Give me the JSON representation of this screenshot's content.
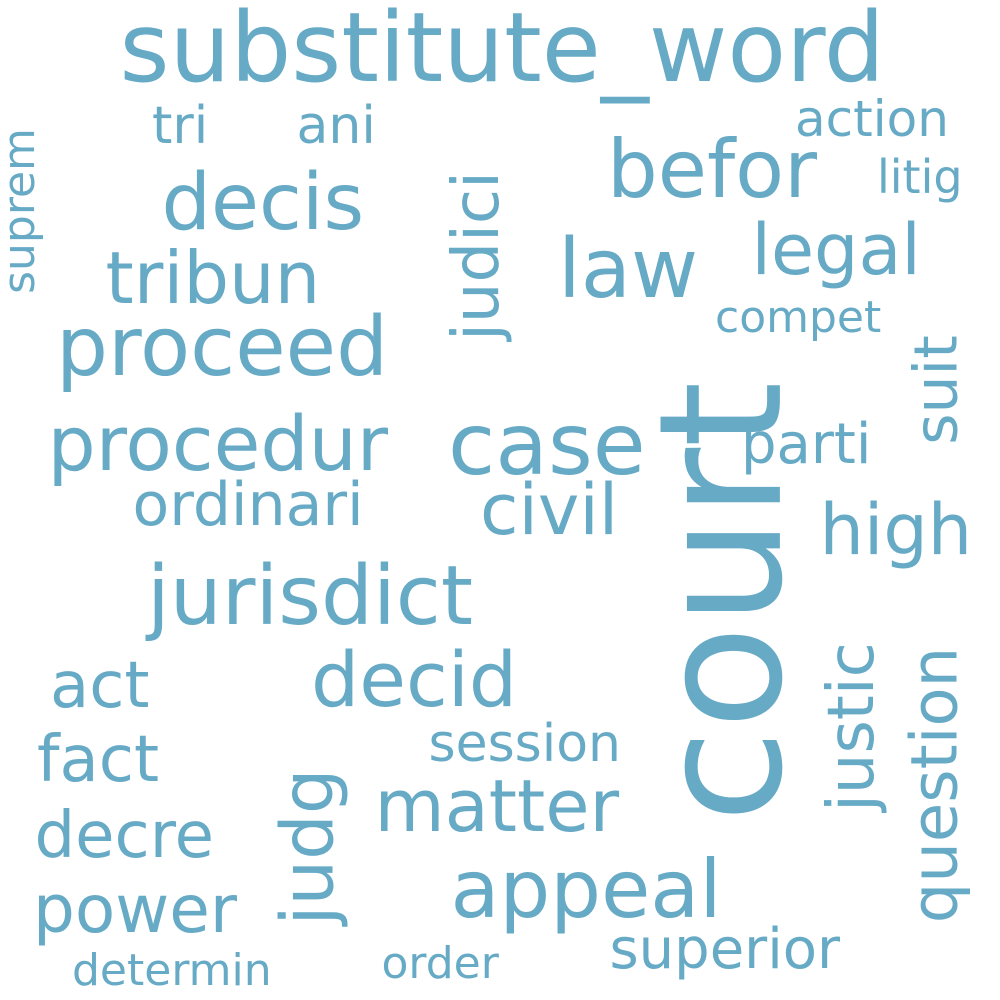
{
  "color": "#67aac6",
  "words": [
    {
      "text": "substitute_word"
    },
    {
      "text": "court"
    },
    {
      "text": "case"
    },
    {
      "text": "law"
    },
    {
      "text": "befor"
    },
    {
      "text": "decis"
    },
    {
      "text": "proceed"
    },
    {
      "text": "procedur"
    },
    {
      "text": "jurisdict"
    },
    {
      "text": "tribun"
    },
    {
      "text": "judici"
    },
    {
      "text": "legal"
    },
    {
      "text": "civil"
    },
    {
      "text": "high"
    },
    {
      "text": "appeal"
    },
    {
      "text": "decid"
    },
    {
      "text": "matter"
    },
    {
      "text": "judg"
    },
    {
      "text": "justic"
    },
    {
      "text": "question"
    },
    {
      "text": "superior"
    },
    {
      "text": "power"
    },
    {
      "text": "ordinari"
    },
    {
      "text": "act"
    },
    {
      "text": "fact"
    },
    {
      "text": "decre"
    },
    {
      "text": "session"
    },
    {
      "text": "parti"
    },
    {
      "text": "suit"
    },
    {
      "text": "action"
    },
    {
      "text": "tri"
    },
    {
      "text": "ani"
    },
    {
      "text": "litig"
    },
    {
      "text": "compet"
    },
    {
      "text": "suprem"
    },
    {
      "text": "order"
    },
    {
      "text": "determin"
    }
  ]
}
